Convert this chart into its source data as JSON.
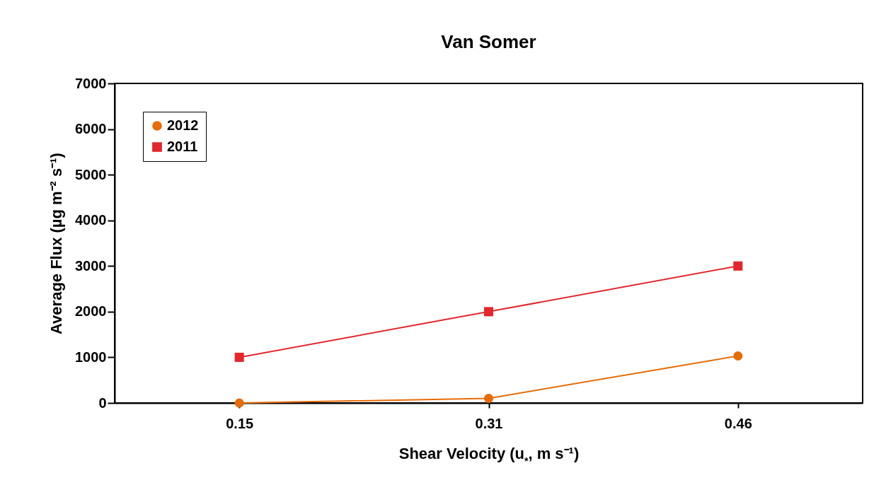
{
  "chart_data": {
    "type": "line",
    "title": "Van Somer",
    "xlabel": "Shear Velocity (u$_{*}$, m s⁻¹)",
    "ylabel": "Average Flux (µg m⁻² s⁻¹)",
    "categories": [
      "0.15",
      "0.31",
      "0.46"
    ],
    "series": [
      {
        "name": "2012",
        "color": "#e46c0a",
        "marker": "circle",
        "values": [
          0,
          100,
          1030
        ]
      },
      {
        "name": "2011",
        "color": "#e0282e",
        "marker": "square",
        "values": [
          1000,
          2000,
          3000
        ]
      }
    ],
    "ylim": [
      0,
      7000
    ],
    "yticks": [
      0,
      1000,
      2000,
      3000,
      4000,
      5000,
      6000,
      7000
    ],
    "grid": false,
    "legend": "top left",
    "line_style": "solid"
  }
}
